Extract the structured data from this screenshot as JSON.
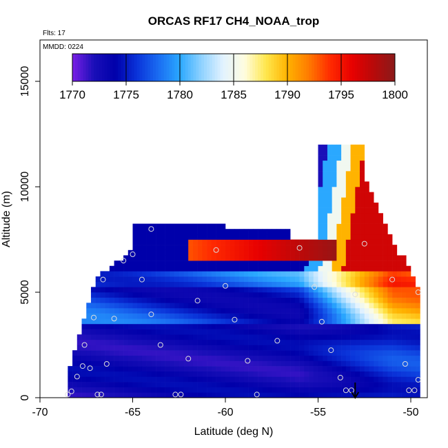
{
  "chart_data": {
    "type": "heatmap",
    "title": "ORCAS RF17 CH4_NOAA_trop",
    "flights_note": "Flts: 17",
    "date_note": "MMDD: 0224",
    "xlabel": "Latitude (deg N)",
    "ylabel": "Altitude (m)",
    "xlim": [
      -70,
      -49.5
    ],
    "ylim": [
      0,
      17000
    ],
    "xticks": [
      -70,
      -65,
      -60,
      -55,
      -50
    ],
    "xtick_labels": [
      "-70",
      "-65",
      "-60",
      "-55",
      "-50"
    ],
    "yticks": [
      0,
      5000,
      10000,
      15000
    ],
    "ytick_labels": [
      "0",
      "5000",
      "10000",
      "15000"
    ],
    "colorbar": {
      "min": 1770,
      "max": 1800,
      "ticks": [
        1770,
        1775,
        1780,
        1785,
        1790,
        1795,
        1800
      ],
      "tick_labels": [
        "1770",
        "1775",
        "1780",
        "1785",
        "1790",
        "1795",
        "1800"
      ],
      "colors": [
        "#7a1fe6",
        "#1a0fb8",
        "#0000aa",
        "#0a33d9",
        "#1a6cf2",
        "#2aa8ff",
        "#8fd2ff",
        "#e2f2ff",
        "#fffde0",
        "#ffe74d",
        "#ffb300",
        "#ff7a00",
        "#ff2a00",
        "#e80000",
        "#b80a0a",
        "#8a1a1a"
      ]
    },
    "grid": false,
    "legend": "colorbar-top",
    "value_field_description": [],
    "observation_points": [
      {
        "lat": -68.5,
        "alt": 150
      },
      {
        "lat": -68.3,
        "alt": 300
      },
      {
        "lat": -68.0,
        "alt": 1000
      },
      {
        "lat": -67.7,
        "alt": 1500
      },
      {
        "lat": -67.6,
        "alt": 2500
      },
      {
        "lat": -67.3,
        "alt": 1400
      },
      {
        "lat": -67.1,
        "alt": 3800
      },
      {
        "lat": -66.9,
        "alt": 150
      },
      {
        "lat": -66.7,
        "alt": 150
      },
      {
        "lat": -66.6,
        "alt": 5600
      },
      {
        "lat": -66.4,
        "alt": 1600
      },
      {
        "lat": -66.0,
        "alt": 3750
      },
      {
        "lat": -65.5,
        "alt": 6500
      },
      {
        "lat": -65.0,
        "alt": 6800
      },
      {
        "lat": -64.5,
        "alt": 5600
      },
      {
        "lat": -64.0,
        "alt": 8000
      },
      {
        "lat": -64.0,
        "alt": 3950
      },
      {
        "lat": -63.5,
        "alt": 2500
      },
      {
        "lat": -62.7,
        "alt": 150
      },
      {
        "lat": -62.4,
        "alt": 150
      },
      {
        "lat": -62.0,
        "alt": 1850
      },
      {
        "lat": -61.5,
        "alt": 4600
      },
      {
        "lat": -60.5,
        "alt": 7000
      },
      {
        "lat": -60.0,
        "alt": 5300
      },
      {
        "lat": -59.5,
        "alt": 3700
      },
      {
        "lat": -58.8,
        "alt": 1750
      },
      {
        "lat": -58.3,
        "alt": 150
      },
      {
        "lat": -57.2,
        "alt": 2700
      },
      {
        "lat": -56.0,
        "alt": 7100
      },
      {
        "lat": -55.2,
        "alt": 5250
      },
      {
        "lat": -54.8,
        "alt": 3600
      },
      {
        "lat": -54.3,
        "alt": 2250
      },
      {
        "lat": -53.8,
        "alt": 950
      },
      {
        "lat": -53.5,
        "alt": 350
      },
      {
        "lat": -53.2,
        "alt": 350
      },
      {
        "lat": -53.0,
        "alt": 4900
      },
      {
        "lat": -52.5,
        "alt": 7300
      },
      {
        "lat": -51.0,
        "alt": 5600
      },
      {
        "lat": -50.3,
        "alt": 1600
      },
      {
        "lat": -50.1,
        "alt": 350
      },
      {
        "lat": -49.8,
        "alt": 350
      },
      {
        "lat": -49.6,
        "alt": 5000
      },
      {
        "lat": -49.6,
        "alt": 850
      }
    ],
    "marker_arrow_lat": -53.0
  }
}
